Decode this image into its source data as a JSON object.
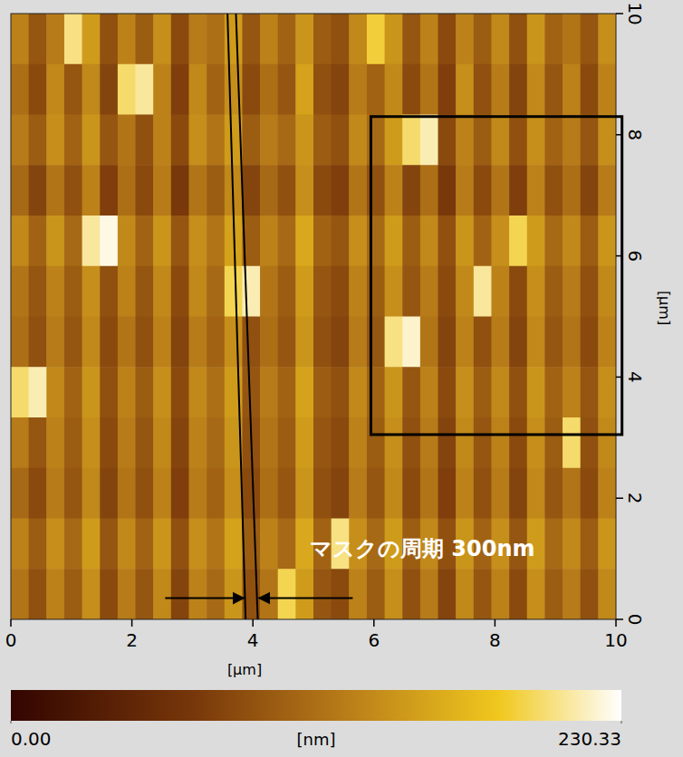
{
  "chart_data": {
    "type": "heatmap",
    "x_label": "[μm]",
    "y_label": "[μm]",
    "xlim": [
      0,
      10
    ],
    "ylim": [
      0,
      10
    ],
    "xticks": [
      0,
      2,
      4,
      6,
      8,
      10
    ],
    "yticks": [
      0,
      2,
      4,
      6,
      8,
      10
    ],
    "z": [
      [
        130,
        95,
        125,
        205,
        150,
        90,
        130,
        100,
        140,
        85,
        125,
        115,
        150,
        95,
        130,
        105,
        145,
        100,
        90,
        135,
        190,
        145,
        95,
        130,
        85,
        130,
        100,
        135,
        90,
        145,
        105,
        120,
        95,
        140
      ],
      [
        115,
        85,
        135,
        95,
        135,
        80,
        200,
        210,
        130,
        75,
        135,
        105,
        140,
        85,
        115,
        95,
        155,
        90,
        80,
        125,
        105,
        135,
        85,
        120,
        75,
        140,
        90,
        125,
        80,
        135,
        95,
        130,
        85,
        130
      ],
      [
        125,
        100,
        140,
        105,
        145,
        95,
        120,
        90,
        130,
        85,
        140,
        120,
        150,
        100,
        125,
        110,
        145,
        100,
        90,
        135,
        110,
        150,
        200,
        215,
        85,
        130,
        100,
        135,
        90,
        140,
        105,
        125,
        95,
        140
      ],
      [
        110,
        80,
        120,
        90,
        130,
        75,
        115,
        85,
        125,
        70,
        120,
        100,
        135,
        80,
        110,
        90,
        140,
        85,
        75,
        120,
        90,
        130,
        80,
        115,
        70,
        125,
        85,
        120,
        75,
        130,
        90,
        115,
        80,
        125
      ],
      [
        135,
        105,
        145,
        110,
        210,
        225,
        135,
        105,
        145,
        95,
        140,
        120,
        155,
        100,
        130,
        110,
        160,
        105,
        95,
        140,
        110,
        150,
        100,
        135,
        90,
        145,
        105,
        140,
        195,
        150,
        110,
        135,
        100,
        145
      ],
      [
        120,
        95,
        130,
        100,
        140,
        90,
        130,
        95,
        135,
        85,
        135,
        110,
        195,
        215,
        120,
        100,
        150,
        95,
        85,
        130,
        100,
        140,
        95,
        125,
        85,
        135,
        210,
        130,
        85,
        140,
        100,
        125,
        90,
        135
      ],
      [
        115,
        90,
        125,
        95,
        135,
        85,
        120,
        90,
        130,
        80,
        125,
        105,
        140,
        90,
        115,
        95,
        145,
        90,
        80,
        125,
        95,
        205,
        220,
        120,
        80,
        130,
        90,
        125,
        80,
        135,
        95,
        120,
        85,
        130
      ],
      [
        200,
        215,
        135,
        105,
        145,
        90,
        130,
        100,
        140,
        85,
        135,
        115,
        150,
        95,
        125,
        105,
        155,
        100,
        90,
        135,
        105,
        145,
        95,
        130,
        85,
        140,
        100,
        135,
        90,
        145,
        105,
        130,
        95,
        140
      ],
      [
        125,
        95,
        130,
        100,
        140,
        85,
        125,
        95,
        135,
        80,
        130,
        110,
        145,
        90,
        120,
        100,
        150,
        95,
        85,
        130,
        100,
        140,
        90,
        125,
        80,
        135,
        95,
        130,
        85,
        140,
        100,
        200,
        90,
        135
      ],
      [
        110,
        85,
        125,
        95,
        135,
        80,
        120,
        90,
        130,
        75,
        125,
        105,
        140,
        85,
        115,
        95,
        145,
        90,
        80,
        125,
        95,
        135,
        85,
        120,
        75,
        130,
        90,
        125,
        80,
        135,
        95,
        120,
        85,
        130
      ],
      [
        130,
        100,
        140,
        110,
        150,
        95,
        135,
        105,
        145,
        90,
        140,
        120,
        155,
        100,
        130,
        110,
        160,
        105,
        205,
        140,
        110,
        150,
        100,
        135,
        90,
        145,
        105,
        140,
        95,
        150,
        110,
        135,
        100,
        145
      ],
      [
        120,
        90,
        130,
        100,
        140,
        85,
        125,
        95,
        135,
        80,
        130,
        110,
        145,
        90,
        120,
        195,
        150,
        95,
        85,
        130,
        100,
        140,
        90,
        125,
        80,
        135,
        95,
        130,
        85,
        140,
        100,
        125,
        90,
        135
      ]
    ],
    "colorbar": {
      "label": "[nm]",
      "range": [
        0,
        230.33
      ],
      "ticks": [
        {
          "value": 0,
          "label": "0.00"
        },
        230.33
      ]
    },
    "annotations": [
      {
        "type": "line",
        "x": [
          3.58,
          3.88
        ],
        "y": [
          10,
          0
        ]
      },
      {
        "type": "line",
        "x": [
          3.72,
          4.08
        ],
        "y": [
          10,
          0
        ]
      },
      {
        "type": "arrow",
        "x": [
          2.55,
          3.85
        ],
        "y": [
          0.35,
          0.35
        ]
      },
      {
        "type": "arrow",
        "x": [
          5.65,
          4.1
        ],
        "y": [
          0.35,
          0.35
        ]
      },
      {
        "type": "box",
        "x": [
          5.95,
          10.1
        ],
        "y": [
          3.05,
          8.3
        ]
      },
      {
        "type": "text",
        "text": "マスクの周期 300nm",
        "x": 6.8,
        "y": 1.05
      }
    ]
  }
}
